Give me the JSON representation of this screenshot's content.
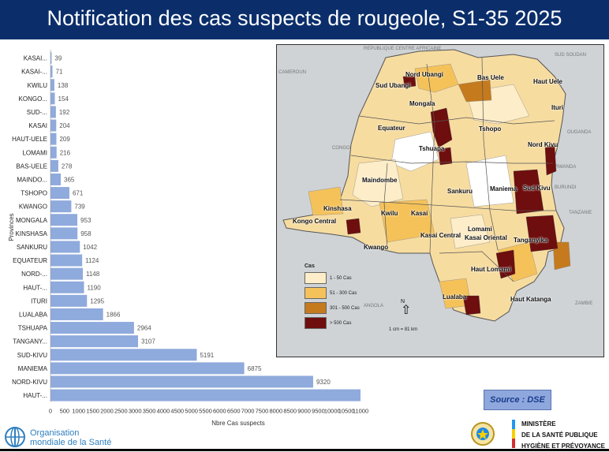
{
  "title": "Notification des cas suspects de rougeole, S1-35 2025",
  "chart_data": {
    "type": "bar",
    "orientation": "horizontal",
    "xlabel": "Nbre Cas suspects",
    "ylabel": "Provinces",
    "xlim": [
      0,
      11000
    ],
    "xticks": [
      "0",
      "500",
      "1000",
      "1500",
      "2000",
      "2500",
      "3000",
      "3500",
      "4000",
      "4500",
      "5000",
      "5500",
      "6000",
      "6500",
      "7000",
      "7500",
      "8000",
      "8500",
      "9000",
      "9500",
      "10000",
      "10500",
      "11000"
    ],
    "categories": [
      "KASAI...",
      "KASAI-...",
      "KWILU",
      "KONGO...",
      "SUD-...",
      "KASAI",
      "HAUT-UELE",
      "LOMAMI",
      "BAS-UELE",
      "MAINDO...",
      "TSHOPO",
      "KWANGO",
      "MONGALA",
      "KINSHASA",
      "SANKURU",
      "EQUATEUR",
      "NORD-...",
      "HAUT-...",
      "ITURI",
      "LUALABA",
      "TSHUAPA",
      "TANGANY...",
      "SUD-KIVU",
      "MANIEMA",
      "NORD-KIVU",
      "HAUT-..."
    ],
    "values": [
      39,
      71,
      138,
      154,
      192,
      204,
      209,
      216,
      278,
      365,
      671,
      739,
      953,
      958,
      1042,
      1124,
      1148,
      1190,
      1295,
      1866,
      2964,
      3107,
      5191,
      6875,
      9320,
      11000
    ],
    "value_labels": [
      "39",
      "71",
      "138",
      "154",
      "192",
      "204",
      "209",
      "216",
      "278",
      "365",
      "671",
      "739",
      "953",
      "958",
      "1042",
      "1124",
      "1148",
      "1190",
      "1295",
      "1866",
      "2964",
      "3107",
      "5191",
      "6875",
      "9320",
      ""
    ],
    "bar_color": "#8faadc",
    "grid": false
  },
  "map": {
    "provinces": [
      "Nord Ubangi",
      "Bas Uele",
      "Haut Uele",
      "Sud Ubangi",
      "Mongala",
      "Ituri",
      "Tshopo",
      "Equateur",
      "Tshuapa",
      "Nord Kivu",
      "Maindombe",
      "Sankuru",
      "Maniema",
      "Sud Kivu",
      "Kinshasa",
      "Kwilu",
      "Kasai",
      "Kongo Central",
      "Lomami",
      "Kasai Central",
      "Kasai Oriental",
      "Tanganyika",
      "Kwango",
      "Haut Lomami",
      "Lualaba",
      "Haut Katanga"
    ],
    "neighbors": [
      "REPUBLIQUE CENTRE AFRICAINE",
      "SUD SOUDAN",
      "CAMEROUN",
      "OUGANDA",
      "CONGO",
      "RWANDA",
      "BURUNDI",
      "TANZANIE",
      "ANGOLA",
      "ZAMBIE"
    ],
    "legend_title": "Cas",
    "legend": [
      {
        "label": "1 - 50 Cas",
        "color": "#fdedc8"
      },
      {
        "label": "51 - 300 Cas",
        "color": "#f5c25a"
      },
      {
        "label": "301 - 500 Cas",
        "color": "#c57a1e"
      },
      {
        "label": "> 500 Cas",
        "color": "#6e0e0e"
      }
    ],
    "scale": "1 cm = 81 km",
    "north": "N"
  },
  "source": "Source : DSE",
  "who": {
    "line1": "Organisation",
    "line2": "mondiale de la Santé"
  },
  "ministry": {
    "line1": "MINISTÈRE",
    "line2": "DE LA SANTÉ PUBLIQUE",
    "line3": "HYGIÈNE ET PRÉVOYANCE"
  },
  "colors": {
    "title_bg": "#0b2e6b",
    "bar": "#8faadc",
    "who_blue": "#2f7fbf"
  }
}
